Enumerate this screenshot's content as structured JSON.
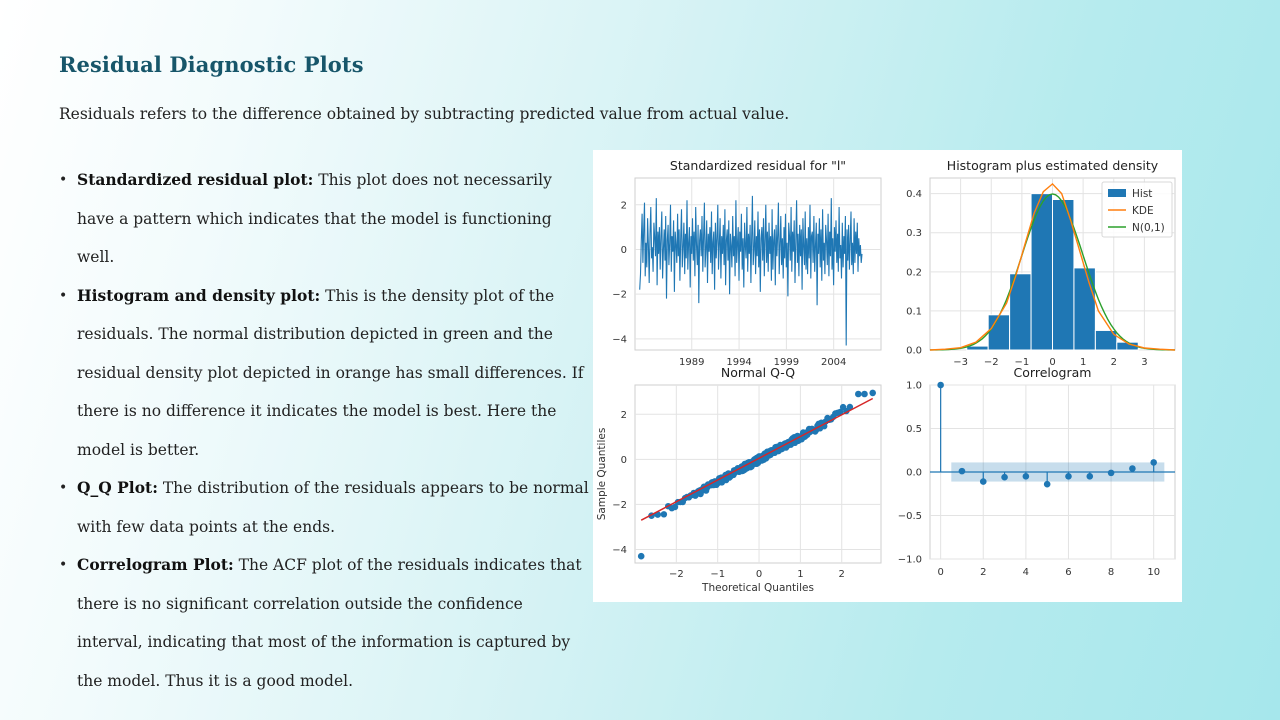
{
  "slide": {
    "title": "Residual Diagnostic Plots",
    "intro": "Residuals refers to the difference obtained by subtracting predicted value from actual value.",
    "bullets": [
      {
        "term": "Standardized residual plot:",
        "text": " This plot does not necessarily have a pattern which indicates that the model is functioning well."
      },
      {
        "term": "Histogram and density plot:",
        "text": " This is the density plot of the residuals. The normal distribution depicted in green and the residual density plot depicted in orange has small differences. If there is no difference it indicates the model is best. Here the model is better."
      },
      {
        "term": "Q_Q Plot:",
        "text": " The distribution of the residuals appears to be normal with few data points at the ends."
      },
      {
        "term": "Correlogram Plot:",
        "text": " The ACF plot of the residuals indicates that there is no significant correlation outside the confidence interval, indicating that most of the information is captured by the model. Thus it is a good model."
      }
    ]
  },
  "chart_data": [
    {
      "type": "line",
      "title": "Standardized residual for \"l\"",
      "xlabel": "",
      "ylabel": "",
      "xticks": [
        "1989",
        "1994",
        "1999",
        "2004"
      ],
      "yticks": [
        "2",
        "0",
        "−2",
        "−4"
      ],
      "ylim": [
        -4.5,
        3.2
      ],
      "xlim": [
        1983,
        2009
      ],
      "color": "#1f77b4",
      "grid": true,
      "series": [
        {
          "x_start": 1983.5,
          "x_step": 0.0833,
          "values": [
            -1.8,
            -1.1,
            0.4,
            1.6,
            -0.6,
            0.9,
            2.1,
            -1.2,
            0.3,
            -0.8,
            1.4,
            0.2,
            -1.5,
            0.7,
            1.9,
            -0.4,
            0.1,
            -1.0,
            1.2,
            0.5,
            -0.3,
            2.3,
            -1.6,
            0.8,
            -0.2,
            1.0,
            -0.9,
            0.6,
            1.7,
            -1.3,
            0.0,
            0.9,
            -0.5,
            1.5,
            -2.2,
            0.4,
            1.1,
            -0.7,
            0.3,
            2.0,
            -1.0,
            0.6,
            -0.1,
            1.3,
            -1.9,
            0.8,
            0.2,
            -0.6,
            1.6,
            -0.3,
            0.9,
            -1.4,
            0.5,
            1.8,
            -0.8,
            0.1,
            1.2,
            -1.1,
            0.7,
            -0.4,
            2.2,
            -0.9,
            0.3,
            1.0,
            -1.7,
            0.6,
            -0.2,
            1.4,
            -0.5,
            0.8,
            -1.2,
            1.9,
            0.2,
            -0.7,
            1.1,
            -2.4,
            0.4,
            0.9,
            -0.3,
            1.5,
            -1.0,
            0.6,
            2.1,
            -0.8,
            0.0,
            1.3,
            -1.5,
            0.7,
            -0.1,
            1.0,
            -0.6,
            1.7,
            -1.1,
            0.3,
            0.8,
            -1.8,
            1.2,
            -0.4,
            0.5,
            2.0,
            -0.9,
            0.2,
            1.4,
            -1.3,
            0.6,
            -0.2,
            1.1,
            -0.7,
            1.8,
            -1.6,
            0.4,
            0.9,
            -0.5,
            1.3,
            -2.0,
            0.7,
            0.1,
            -0.8,
            1.5,
            -0.3,
            0.6,
            -1.2,
            2.2,
            -0.6,
            0.3,
            1.0,
            -1.4,
            0.8,
            -0.1,
            1.6,
            -0.9,
            0.5,
            -1.7,
            1.2,
            0.2,
            -0.4,
            1.9,
            -1.0,
            0.7,
            -0.2,
            1.1,
            -1.5,
            0.4,
            2.4,
            -0.7,
            0.0,
            1.3,
            -1.1,
            0.6,
            -0.3,
            1.7,
            -0.8,
            0.9,
            -1.9,
            0.5,
            1.0,
            -0.5,
            1.4,
            -1.2,
            0.3,
            2.0,
            -0.6,
            0.8,
            -1.0,
            1.2,
            -0.2,
            0.6,
            -1.4,
            1.8,
            -0.9,
            0.4,
            0.9,
            -1.6,
            1.1,
            -0.3,
            0.7,
            2.1,
            -1.1,
            0.2,
            1.5,
            -0.7,
            0.5,
            -1.3,
            1.0,
            -0.4,
            1.6,
            -0.8,
            0.3,
            -2.1,
            1.2,
            0.6,
            -0.5,
            1.9,
            -1.0,
            0.8,
            -0.1,
            1.3,
            -1.5,
            0.4,
            2.2,
            -0.6,
            0.7,
            -1.2,
            1.1,
            -0.3,
            0.9,
            -1.8,
            1.4,
            0.1,
            -0.7,
            1.7,
            -0.9,
            0.5,
            -1.1,
            1.0,
            -0.4,
            2.0,
            -1.3,
            0.6,
            0.8,
            -0.6,
            1.5,
            -1.0,
            0.2,
            1.2,
            -2.5,
            0.7,
            -0.2,
            1.4,
            -0.8,
            0.9,
            -1.4,
            1.8,
            -0.5,
            0.3,
            -1.1,
            1.1,
            0.4,
            -0.7,
            1.6,
            -1.2,
            0.8,
            -0.3,
            2.3,
            -0.9,
            0.5,
            -1.6,
            1.0,
            -0.1,
            1.3,
            -0.6,
            0.7,
            -1.0,
            1.9,
            -0.4,
            0.2,
            -1.3,
            1.2,
            -0.8,
            0.6,
            -0.2,
            1.5,
            -4.3,
            0.9,
            -0.5,
            1.1,
            -0.9,
            0.4,
            1.7,
            -0.7,
            0.3,
            -1.1,
            1.4,
            -0.6,
            0.8,
            -0.2,
            1.2,
            -1.0,
            0.5,
            -0.3,
            0.2,
            -0.6,
            -0.2
          ]
        }
      ]
    },
    {
      "type": "bar",
      "title": "Histogram plus estimated density",
      "xlabel": "",
      "ylabel": "",
      "xticks": [
        "−3",
        "−2",
        "−1",
        "0",
        "1",
        "2",
        "3"
      ],
      "yticks": [
        "0.4",
        "0.3",
        "0.2",
        "0.1",
        "0.0"
      ],
      "xlim": [
        -4,
        4
      ],
      "ylim": [
        0,
        0.44
      ],
      "legend": {
        "placement": "top-right",
        "entries": [
          "Hist",
          "KDE",
          "N(0,1)"
        ]
      },
      "colors": {
        "hist": "#1f77b4",
        "kde": "#ff7f0e",
        "normal": "#2ca02c"
      },
      "bins": [
        {
          "left": -2.8,
          "right": -2.1,
          "value": 0.01
        },
        {
          "left": -2.1,
          "right": -1.4,
          "value": 0.09
        },
        {
          "left": -1.4,
          "right": -0.7,
          "value": 0.195
        },
        {
          "left": -0.7,
          "right": 0.0,
          "value": 0.4
        },
        {
          "left": 0.0,
          "right": 0.7,
          "value": 0.385
        },
        {
          "left": 0.7,
          "right": 1.4,
          "value": 0.21
        },
        {
          "left": 1.4,
          "right": 2.1,
          "value": 0.05
        },
        {
          "left": 2.1,
          "right": 2.8,
          "value": 0.02
        }
      ],
      "kde_points": [
        [
          -4,
          0.0
        ],
        [
          -3.5,
          0.002
        ],
        [
          -3,
          0.006
        ],
        [
          -2.5,
          0.02
        ],
        [
          -2,
          0.055
        ],
        [
          -1.5,
          0.12
        ],
        [
          -1.2,
          0.19
        ],
        [
          -0.9,
          0.27
        ],
        [
          -0.6,
          0.35
        ],
        [
          -0.3,
          0.405
        ],
        [
          0,
          0.425
        ],
        [
          0.3,
          0.4
        ],
        [
          0.6,
          0.33
        ],
        [
          0.9,
          0.25
        ],
        [
          1.2,
          0.17
        ],
        [
          1.5,
          0.1
        ],
        [
          2,
          0.04
        ],
        [
          2.5,
          0.015
        ],
        [
          3,
          0.005
        ],
        [
          3.5,
          0.002
        ],
        [
          4,
          0.0
        ]
      ]
    },
    {
      "type": "scatter",
      "title": "Normal Q-Q",
      "xlabel": "Theoretical Quantiles",
      "ylabel": "Sample Quantiles",
      "xticks": [
        "−2",
        "−1",
        "0",
        "1",
        "2"
      ],
      "yticks": [
        "2",
        "0",
        "−2",
        "−4"
      ],
      "xlim": [
        -3.0,
        2.95
      ],
      "ylim": [
        -4.6,
        3.3
      ],
      "point_color": "#1f77b4",
      "line_color": "#d62728",
      "reference_line": [
        [
          -2.85,
          -2.7
        ],
        [
          2.75,
          2.7
        ]
      ],
      "outliers": [
        [
          -2.85,
          -4.3
        ],
        [
          -2.6,
          -2.5
        ],
        [
          -2.45,
          -2.45
        ],
        [
          2.4,
          2.9
        ],
        [
          2.55,
          2.9
        ],
        [
          2.75,
          2.95
        ]
      ]
    },
    {
      "type": "bar",
      "title": "Correlogram",
      "xlabel": "",
      "ylabel": "",
      "xticks": [
        "0",
        "2",
        "4",
        "6",
        "8",
        "10"
      ],
      "yticks": [
        "1.0",
        "0.5",
        "0.0",
        "−0.5",
        "−1.0"
      ],
      "xlim": [
        -0.5,
        11.0
      ],
      "ylim": [
        -1.0,
        1.0
      ],
      "confidence_band": [
        -0.11,
        0.11
      ],
      "color": "#1f77b4",
      "lags": [
        0,
        1,
        2,
        3,
        4,
        5,
        6,
        7,
        8,
        9,
        10
      ],
      "values": [
        1.0,
        0.01,
        -0.11,
        -0.06,
        -0.05,
        -0.14,
        -0.05,
        -0.05,
        -0.01,
        0.04,
        0.11
      ]
    }
  ]
}
